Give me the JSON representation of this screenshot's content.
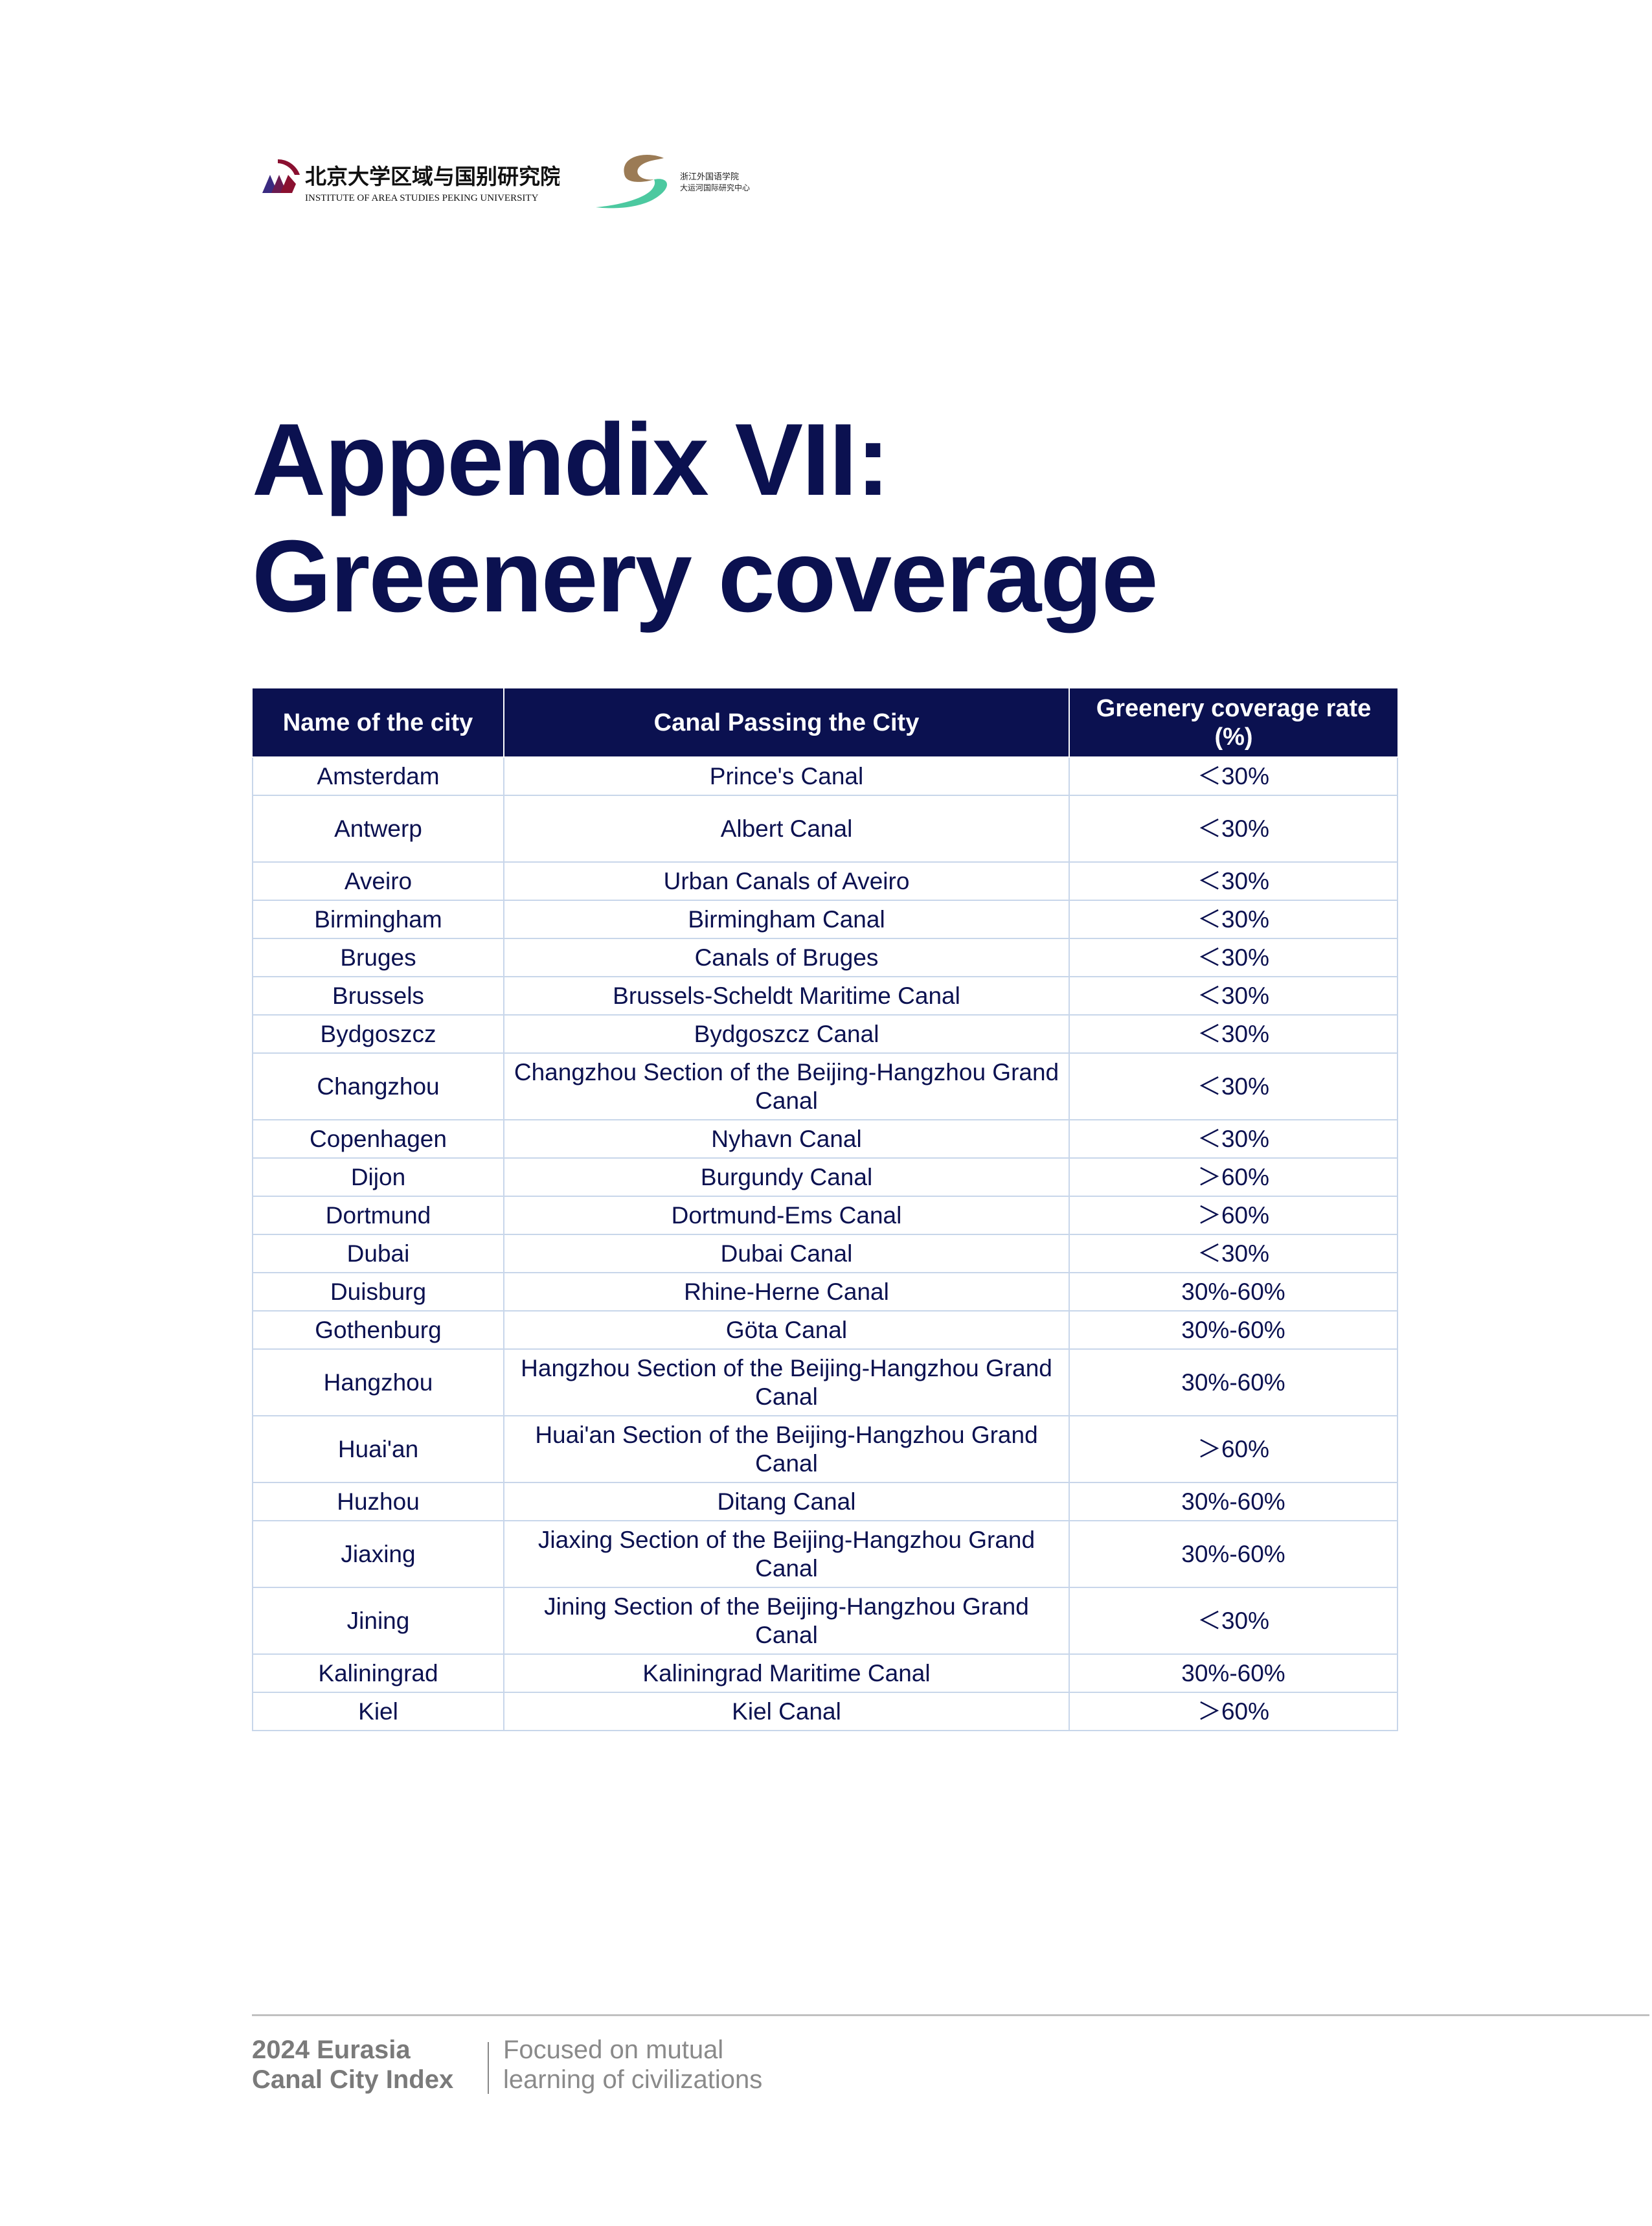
{
  "logos": [
    {
      "name": "Institute of Area Studies Peking University",
      "text_cn": "北京大学区域与国别研究院",
      "text_en": "INSTITUTE OF AREA STUDIES PEKING UNIVERSITY"
    },
    {
      "name": "International Research Centre of the Grand Canal, Zhejiang International Studies University",
      "text_cn": "浙江外国语学院 大运河国际研究中心"
    }
  ],
  "title": {
    "line1": "Appendix VII:",
    "line2": "Greenery coverage"
  },
  "table": {
    "headers": [
      "Name of the city",
      "Canal Passing the City",
      "Greenery coverage rate (%)"
    ],
    "rows": [
      [
        "Amsterdam",
        "Prince's Canal",
        "＜30%"
      ],
      [
        "Antwerp",
        "Albert Canal",
        "＜30%"
      ],
      [
        "Aveiro",
        "Urban Canals of Aveiro",
        "＜30%"
      ],
      [
        "Birmingham",
        "Birmingham Canal",
        "＜30%"
      ],
      [
        "Bruges",
        "Canals of Bruges",
        "＜30%"
      ],
      [
        "Brussels",
        "Brussels-Scheldt Maritime Canal",
        "＜30%"
      ],
      [
        "Bydgoszcz",
        "Bydgoszcz Canal",
        "＜30%"
      ],
      [
        "Changzhou",
        "Changzhou Section of the Beijing-Hangzhou Grand Canal",
        "＜30%"
      ],
      [
        "Copenhagen",
        "Nyhavn Canal",
        "＜30%"
      ],
      [
        "Dijon",
        "Burgundy Canal",
        "＞60%"
      ],
      [
        "Dortmund",
        "Dortmund-Ems Canal",
        "＞60%"
      ],
      [
        "Dubai",
        "Dubai Canal",
        "＜30%"
      ],
      [
        "Duisburg",
        "Rhine-Herne Canal",
        "30%-60%"
      ],
      [
        "Gothenburg",
        "Göta Canal",
        "30%-60%"
      ],
      [
        "Hangzhou",
        "Hangzhou Section of the Beijing-Hangzhou Grand Canal",
        "30%-60%"
      ],
      [
        "Huai'an",
        "Huai'an Section of the Beijing-Hangzhou Grand Canal",
        "＞60%"
      ],
      [
        "Huzhou",
        "Ditang Canal",
        "30%-60%"
      ],
      [
        "Jiaxing",
        "Jiaxing Section of the Beijing-Hangzhou Grand Canal",
        "30%-60%"
      ],
      [
        "Jining",
        "Jining Section of the Beijing-Hangzhou Grand Canal",
        "＜30%"
      ],
      [
        "Kaliningrad",
        "Kaliningrad Maritime Canal",
        "30%-60%"
      ],
      [
        "Kiel",
        "Kiel Canal",
        "＞60%"
      ]
    ]
  },
  "footer": {
    "publication": "2024 Eurasia Canal City Index",
    "tagline": "Focused on mutual learning of civilizations"
  },
  "colors": {
    "navy": "#0b1150",
    "border": "#c8d6ea",
    "footer_gray": "#7a7a7a"
  }
}
